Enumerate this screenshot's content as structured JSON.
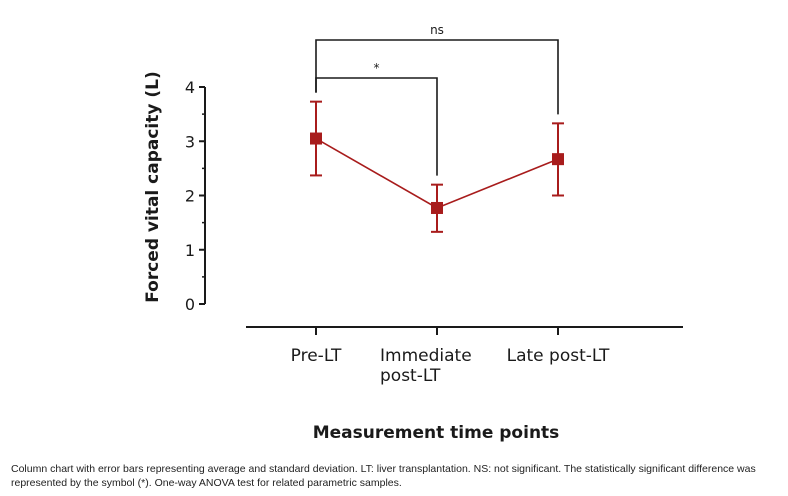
{
  "chart_data": {
    "type": "line",
    "categories": [
      [
        "Pre-LT"
      ],
      [
        "Immediate",
        "post-LT"
      ],
      [
        "Late post-LT"
      ]
    ],
    "series": [
      {
        "name": "Forced vital capacity",
        "values": [
          3.05,
          1.77,
          2.67
        ],
        "error_high": [
          3.73,
          2.2,
          3.33
        ],
        "error_low": [
          2.37,
          1.33,
          2.0
        ],
        "color": "#a81c1c"
      }
    ],
    "xlabel": "Measurement time points",
    "ylabel": "Forced vital capacity (L)",
    "ylim": [
      0,
      4
    ],
    "yticks": [
      0,
      1,
      2,
      3,
      4
    ],
    "significance": [
      {
        "from": 0,
        "to": 1,
        "label": "*"
      },
      {
        "from": 0,
        "to": 2,
        "label": "ns"
      }
    ]
  },
  "caption": "Column chart with error bars representing average and standard deviation. LT: liver transplantation. NS: not significant. The statistically significant difference was represented by the symbol (*). One-way ANOVA test for related parametric samples."
}
